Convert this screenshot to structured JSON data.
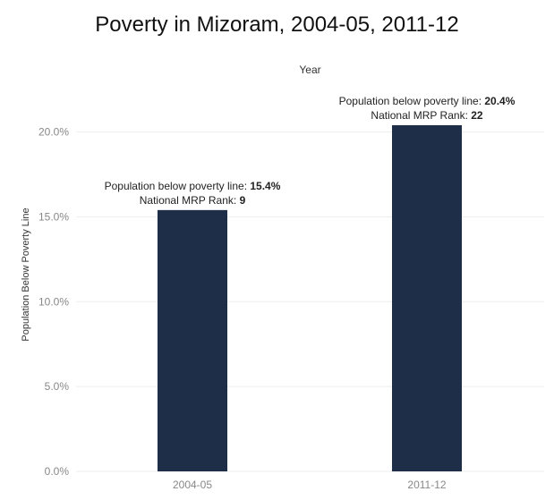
{
  "chart_data": {
    "type": "bar",
    "title": "Poverty in Mizoram, 2004-05, 2011-12",
    "column_header": "Year",
    "xlabel": "",
    "ylabel": "Population Below Poverty Line",
    "categories": [
      "2004-05",
      "2011-12"
    ],
    "values": [
      15.4,
      20.4
    ],
    "ylim": [
      0,
      20.4
    ],
    "yticks": [
      0,
      5,
      10,
      15,
      20
    ],
    "ytick_labels": [
      "0.0%",
      "5.0%",
      "10.0%",
      "15.0%",
      "20.0%"
    ],
    "grid": true,
    "bar_color": "#1f2e48",
    "annotations": [
      {
        "line1_label": "Population below poverty line:",
        "line1_value": "15.4%",
        "line2_label": "National MRP Rank:",
        "line2_value": "9"
      },
      {
        "line1_label": "Population below poverty line:",
        "line1_value": "20.4%",
        "line2_label": "National MRP Rank:",
        "line2_value": "22"
      }
    ]
  }
}
